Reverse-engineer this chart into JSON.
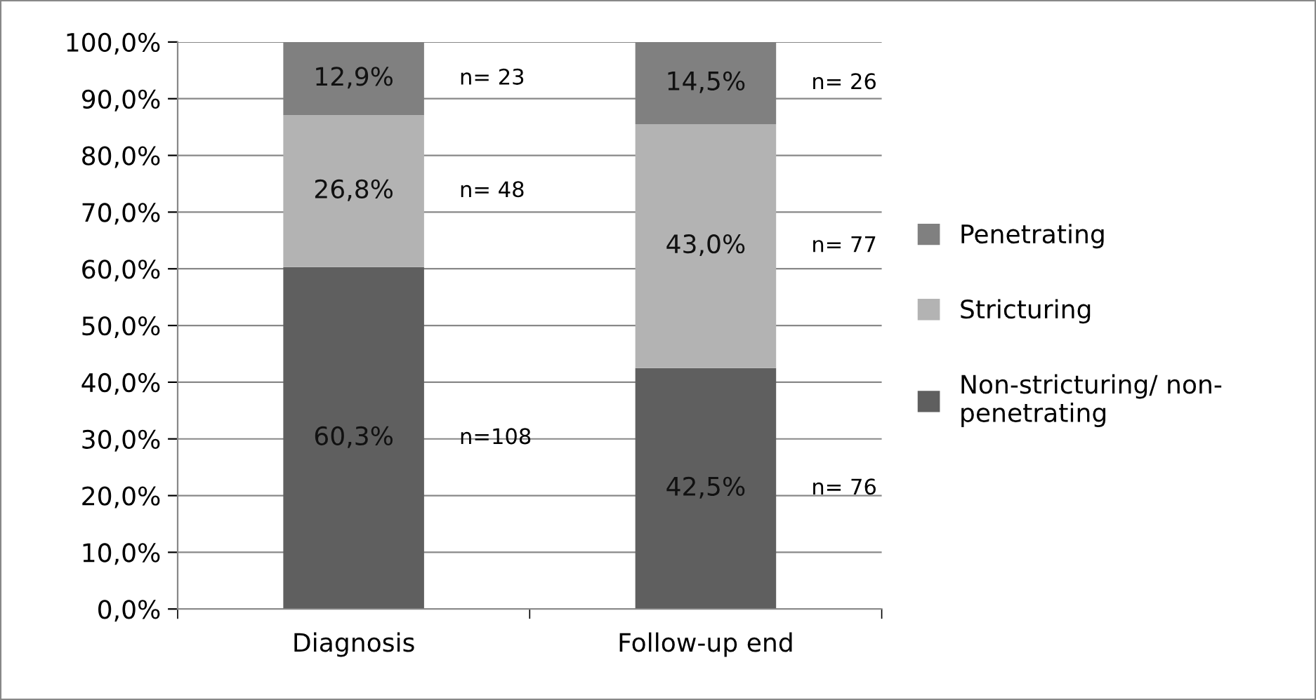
{
  "chart_data": {
    "type": "bar",
    "stacked": true,
    "categories": [
      "Diagnosis",
      "Follow-up end"
    ],
    "series": [
      {
        "name": "Non-stricturing/ non-\npenetrating",
        "color": "#5f5f5f",
        "values": [
          60.3,
          42.5
        ],
        "value_labels": [
          "60,3%",
          "42,5%"
        ]
      },
      {
        "name": "Stricturing",
        "color": "#b3b3b3",
        "values": [
          26.8,
          43.0
        ],
        "value_labels": [
          "26,8%",
          "43,0%"
        ]
      },
      {
        "name": "Penetrating",
        "color": "#808080",
        "values": [
          12.9,
          14.5
        ],
        "value_labels": [
          "12,9%",
          "14,5%"
        ]
      }
    ],
    "ylim": [
      0,
      100
    ],
    "yticks": [
      {
        "value": 0,
        "label": "0,0%"
      },
      {
        "value": 10,
        "label": "10,0%"
      },
      {
        "value": 20,
        "label": "20,0%"
      },
      {
        "value": 30,
        "label": "30,0%"
      },
      {
        "value": 40,
        "label": "40,0%"
      },
      {
        "value": 50,
        "label": "50,0%"
      },
      {
        "value": 60,
        "label": "60,0%"
      },
      {
        "value": 70,
        "label": "70,0%"
      },
      {
        "value": 80,
        "label": "80,0%"
      },
      {
        "value": 90,
        "label": "90,0%"
      },
      {
        "value": 100,
        "label": "100,0%"
      }
    ],
    "grid": "y",
    "legend": "right",
    "annotations": [
      "n= 23",
      "n= 48",
      "n=108",
      "n= 26",
      "n= 77",
      "n= 76"
    ]
  }
}
